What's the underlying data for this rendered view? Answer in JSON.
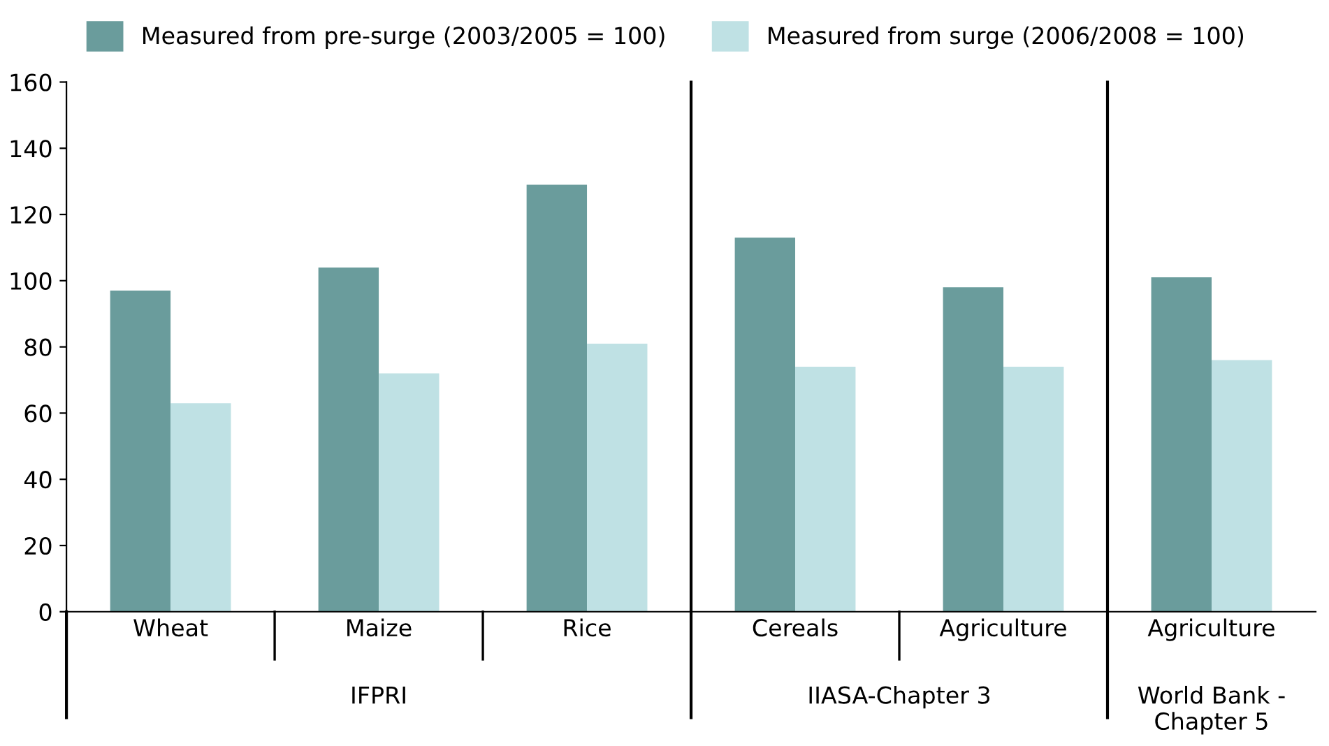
{
  "chart_data": {
    "type": "bar",
    "categories": [
      "Wheat",
      "Maize",
      "Rice",
      "Cereals",
      "Agriculture",
      "Agriculture"
    ],
    "series": [
      {
        "name": "Measured from pre-surge (2003/2005 = 100)",
        "color": "#6a9c9c",
        "values": [
          97,
          104,
          129,
          113,
          98,
          101
        ]
      },
      {
        "name": "Measured from surge (2006/2008 = 100)",
        "color": "#bfe1e4",
        "values": [
          63,
          72,
          81,
          74,
          74,
          76
        ]
      }
    ],
    "ylim": [
      0,
      160
    ],
    "yticks": [
      0,
      20,
      40,
      60,
      80,
      100,
      120,
      140,
      160
    ],
    "legend": "top",
    "annotations": [
      "IFPRI",
      "IIASA-Chapter 3",
      "World Bank -\nChapter 5"
    ]
  }
}
